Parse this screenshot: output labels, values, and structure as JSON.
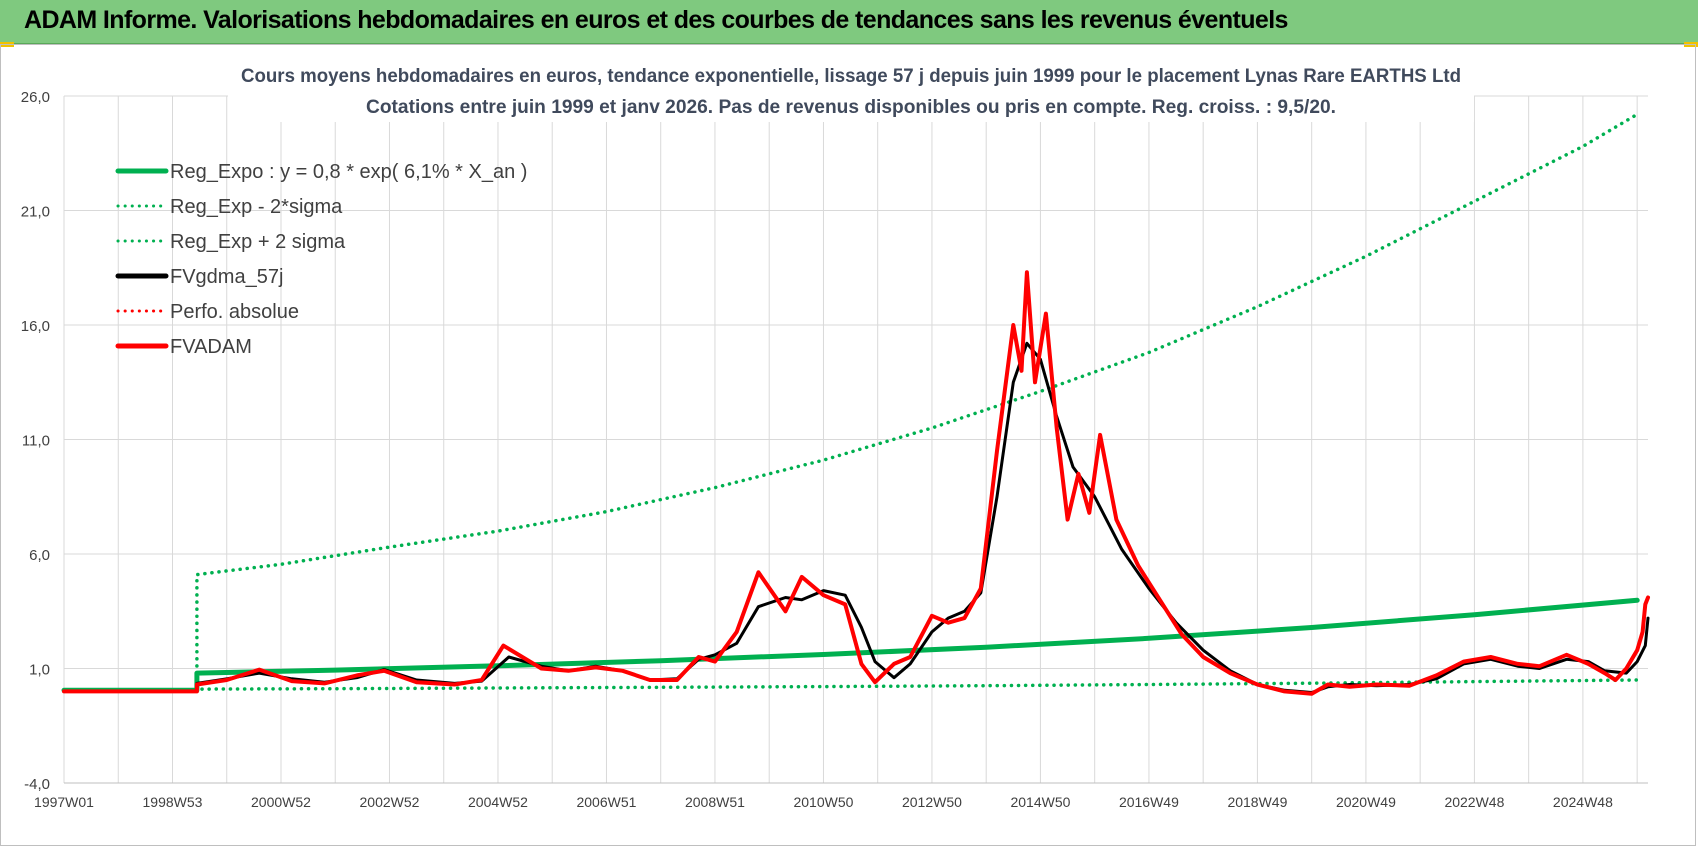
{
  "banner": {
    "title": "ADAM Informe. Valorisations hebdomadaires en euros et des courbes de tendances sans les revenus éventuels"
  },
  "chart_data": {
    "type": "line",
    "title": "Cours moyens hebdomadaires en euros, tendance exponentielle, lissage 57 j depuis juin 1999 pour le placement Lynas Rare EARTHS Ltd",
    "subtitle": "Cotations entre juin 1999 et janv 2026.  Pas de revenus disponibles ou pris en compte. Reg. croiss. : 9,5/20.",
    "ylim": [
      -4,
      26
    ],
    "y_ticks": [
      "-4,0",
      "1,0",
      "6,0",
      "11,0",
      "16,0",
      "21,0",
      "26,0"
    ],
    "x_range": [
      1997.0,
      2026.2
    ],
    "x_ticks": [
      {
        "label": "1997W01",
        "year": 1997.0
      },
      {
        "label": "1998W53",
        "year": 1999.0
      },
      {
        "label": "2000W52",
        "year": 2001.0
      },
      {
        "label": "2002W52",
        "year": 2003.0
      },
      {
        "label": "2004W52",
        "year": 2005.0
      },
      {
        "label": "2006W51",
        "year": 2007.0
      },
      {
        "label": "2008W51",
        "year": 2009.0
      },
      {
        "label": "2010W50",
        "year": 2011.0
      },
      {
        "label": "2012W50",
        "year": 2013.0
      },
      {
        "label": "2014W50",
        "year": 2015.0
      },
      {
        "label": "2016W49",
        "year": 2017.0
      },
      {
        "label": "2018W49",
        "year": 2019.0
      },
      {
        "label": "2020W49",
        "year": 2021.0
      },
      {
        "label": "2022W48",
        "year": 2023.0
      },
      {
        "label": "2024W48",
        "year": 2025.0
      }
    ],
    "grid": true,
    "legend_position": "top-left",
    "series": [
      {
        "name": "Reg_Expo : y = 0,8 * exp( 6,1% *  X_an )",
        "color": "#00b050",
        "style": "solid",
        "width": 5,
        "points": [
          [
            1997.0,
            0.05
          ],
          [
            1999.45,
            0.05
          ],
          [
            1999.45,
            0.8
          ],
          [
            2002,
            0.93
          ],
          [
            2005,
            1.12
          ],
          [
            2008,
            1.34
          ],
          [
            2011,
            1.61
          ],
          [
            2014,
            1.93
          ],
          [
            2017,
            2.32
          ],
          [
            2020,
            2.79
          ],
          [
            2023,
            3.35
          ],
          [
            2026.0,
            3.98
          ]
        ]
      },
      {
        "name": "Reg_Exp - 2*sigma",
        "color": "#00b050",
        "style": "dotted",
        "width": 3.5,
        "points": [
          [
            1999.45,
            0.5
          ],
          [
            1999.45,
            0.1
          ],
          [
            2002,
            0.12
          ],
          [
            2005,
            0.15
          ],
          [
            2008,
            0.18
          ],
          [
            2011,
            0.21
          ],
          [
            2014,
            0.25
          ],
          [
            2017,
            0.3
          ],
          [
            2020,
            0.36
          ],
          [
            2023,
            0.43
          ],
          [
            2026.0,
            0.5
          ]
        ]
      },
      {
        "name": "Reg_Exp + 2 sigma",
        "color": "#00b050",
        "style": "dotted",
        "width": 3.5,
        "points": [
          [
            1999.45,
            0.8
          ],
          [
            1999.45,
            5.1
          ],
          [
            2001,
            5.55
          ],
          [
            2003,
            6.3
          ],
          [
            2005,
            7.0
          ],
          [
            2007,
            7.85
          ],
          [
            2009,
            8.9
          ],
          [
            2011,
            10.1
          ],
          [
            2013,
            11.5
          ],
          [
            2015,
            13.1
          ],
          [
            2017,
            14.8
          ],
          [
            2019,
            16.8
          ],
          [
            2021,
            19.0
          ],
          [
            2023,
            21.4
          ],
          [
            2025,
            23.8
          ],
          [
            2026.0,
            25.2
          ]
        ]
      },
      {
        "name": "FVgdma_57j",
        "color": "#000000",
        "style": "solid",
        "width": 3,
        "points": [
          [
            1997.0,
            0.0
          ],
          [
            1999.45,
            0.0
          ],
          [
            1999.45,
            0.35
          ],
          [
            2000,
            0.55
          ],
          [
            2000.6,
            0.8
          ],
          [
            2001.2,
            0.55
          ],
          [
            2001.8,
            0.4
          ],
          [
            2002.4,
            0.6
          ],
          [
            2002.9,
            0.95
          ],
          [
            2003.5,
            0.5
          ],
          [
            2004.2,
            0.35
          ],
          [
            2004.7,
            0.45
          ],
          [
            2005.2,
            1.5
          ],
          [
            2005.8,
            1.1
          ],
          [
            2006.3,
            0.9
          ],
          [
            2006.8,
            1.1
          ],
          [
            2007.3,
            0.9
          ],
          [
            2007.8,
            0.5
          ],
          [
            2008.3,
            0.55
          ],
          [
            2008.7,
            1.4
          ],
          [
            2009.0,
            1.6
          ],
          [
            2009.4,
            2.1
          ],
          [
            2009.8,
            3.7
          ],
          [
            2010.3,
            4.1
          ],
          [
            2010.6,
            4.0
          ],
          [
            2011.0,
            4.4
          ],
          [
            2011.4,
            4.2
          ],
          [
            2011.7,
            2.8
          ],
          [
            2011.95,
            1.3
          ],
          [
            2012.3,
            0.6
          ],
          [
            2012.6,
            1.2
          ],
          [
            2013.0,
            2.6
          ],
          [
            2013.3,
            3.2
          ],
          [
            2013.6,
            3.5
          ],
          [
            2013.9,
            4.3
          ],
          [
            2014.2,
            8.5
          ],
          [
            2014.5,
            13.5
          ],
          [
            2014.75,
            15.2
          ],
          [
            2015.0,
            14.5
          ],
          [
            2015.3,
            12.0
          ],
          [
            2015.6,
            9.8
          ],
          [
            2016.0,
            8.5
          ],
          [
            2016.5,
            6.2
          ],
          [
            2017.0,
            4.5
          ],
          [
            2017.5,
            3.0
          ],
          [
            2018.0,
            1.8
          ],
          [
            2018.5,
            0.9
          ],
          [
            2019.0,
            0.3
          ],
          [
            2019.5,
            0.05
          ],
          [
            2020.0,
            -0.05
          ],
          [
            2020.3,
            0.2
          ],
          [
            2020.7,
            0.3
          ],
          [
            2021.2,
            0.25
          ],
          [
            2021.8,
            0.3
          ],
          [
            2022.3,
            0.55
          ],
          [
            2022.8,
            1.2
          ],
          [
            2023.3,
            1.4
          ],
          [
            2023.8,
            1.1
          ],
          [
            2024.2,
            1.0
          ],
          [
            2024.7,
            1.4
          ],
          [
            2025.1,
            1.3
          ],
          [
            2025.4,
            0.9
          ],
          [
            2025.8,
            0.8
          ],
          [
            2026.0,
            1.3
          ],
          [
            2026.15,
            2.0
          ],
          [
            2026.2,
            3.2
          ]
        ]
      },
      {
        "name": "Perfo. absolue",
        "color": "#ff0000",
        "style": "dotted",
        "width": 3,
        "points": []
      },
      {
        "name": "FVADAM",
        "color": "#ff0000",
        "style": "solid",
        "width": 4,
        "points": [
          [
            1997.0,
            0.0
          ],
          [
            1999.45,
            0.0
          ],
          [
            1999.45,
            0.3
          ],
          [
            2000,
            0.5
          ],
          [
            2000.6,
            0.95
          ],
          [
            2001.2,
            0.45
          ],
          [
            2001.8,
            0.35
          ],
          [
            2002.4,
            0.7
          ],
          [
            2002.9,
            0.9
          ],
          [
            2003.5,
            0.4
          ],
          [
            2004.2,
            0.3
          ],
          [
            2004.7,
            0.5
          ],
          [
            2005.1,
            2.0
          ],
          [
            2005.8,
            1.0
          ],
          [
            2006.3,
            0.9
          ],
          [
            2006.8,
            1.05
          ],
          [
            2007.3,
            0.9
          ],
          [
            2007.8,
            0.5
          ],
          [
            2008.3,
            0.5
          ],
          [
            2008.7,
            1.5
          ],
          [
            2009.0,
            1.3
          ],
          [
            2009.4,
            2.6
          ],
          [
            2009.8,
            5.2
          ],
          [
            2010.3,
            3.5
          ],
          [
            2010.6,
            5.0
          ],
          [
            2011.0,
            4.2
          ],
          [
            2011.4,
            3.8
          ],
          [
            2011.7,
            1.2
          ],
          [
            2011.95,
            0.4
          ],
          [
            2012.3,
            1.2
          ],
          [
            2012.6,
            1.5
          ],
          [
            2013.0,
            3.3
          ],
          [
            2013.3,
            3.0
          ],
          [
            2013.6,
            3.2
          ],
          [
            2013.9,
            4.5
          ],
          [
            2014.2,
            10.5
          ],
          [
            2014.5,
            16.0
          ],
          [
            2014.65,
            14.0
          ],
          [
            2014.75,
            18.3
          ],
          [
            2014.9,
            13.5
          ],
          [
            2015.1,
            16.5
          ],
          [
            2015.3,
            11.5
          ],
          [
            2015.5,
            7.5
          ],
          [
            2015.7,
            9.5
          ],
          [
            2015.9,
            7.8
          ],
          [
            2016.1,
            11.2
          ],
          [
            2016.4,
            7.5
          ],
          [
            2016.8,
            5.5
          ],
          [
            2017.2,
            4.0
          ],
          [
            2017.6,
            2.5
          ],
          [
            2018.0,
            1.5
          ],
          [
            2018.5,
            0.8
          ],
          [
            2019.0,
            0.3
          ],
          [
            2019.5,
            0.0
          ],
          [
            2020.0,
            -0.1
          ],
          [
            2020.3,
            0.3
          ],
          [
            2020.7,
            0.2
          ],
          [
            2021.2,
            0.3
          ],
          [
            2021.8,
            0.25
          ],
          [
            2022.3,
            0.7
          ],
          [
            2022.8,
            1.3
          ],
          [
            2023.3,
            1.5
          ],
          [
            2023.8,
            1.2
          ],
          [
            2024.2,
            1.1
          ],
          [
            2024.7,
            1.6
          ],
          [
            2025.1,
            1.2
          ],
          [
            2025.4,
            0.8
          ],
          [
            2025.6,
            0.5
          ],
          [
            2025.8,
            1.0
          ],
          [
            2026.0,
            1.8
          ],
          [
            2026.1,
            2.6
          ],
          [
            2026.15,
            3.8
          ],
          [
            2026.2,
            4.1
          ]
        ]
      }
    ]
  }
}
